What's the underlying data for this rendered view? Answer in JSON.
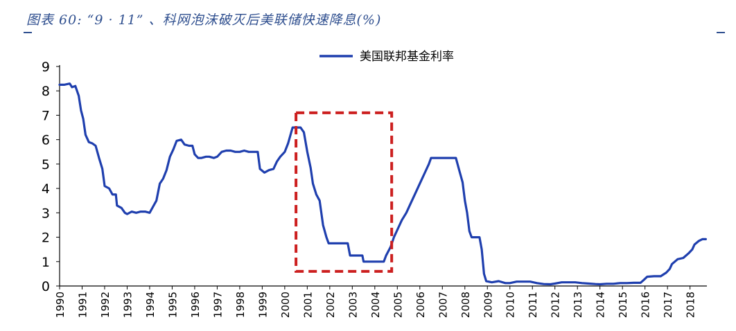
{
  "figure": {
    "title": "图表 60: “9 · 11” 、科网泡沫破灭后美联储快速降息(%)"
  },
  "chart_data": {
    "type": "line",
    "title": "",
    "xlabel": "",
    "ylabel": "",
    "ylim": [
      0,
      9
    ],
    "yticks": [
      "0",
      "1",
      "2",
      "3",
      "4",
      "5",
      "6",
      "7",
      "8",
      "9"
    ],
    "xticks": [
      "1990",
      "1991",
      "1992",
      "1993",
      "1994",
      "1995",
      "1996",
      "1997",
      "1998",
      "1999",
      "2000",
      "2001",
      "2002",
      "2003",
      "2004",
      "2005",
      "2006",
      "2007",
      "2008",
      "2009",
      "2010",
      "2011",
      "2012",
      "2013",
      "2014",
      "2015",
      "2016",
      "2017",
      "2018"
    ],
    "xlim": [
      1990.0,
      2018.75
    ],
    "grid": false,
    "legend_position": "top-center",
    "highlight_box": {
      "x_from": 2000.5,
      "x_to": 2004.75,
      "y_from": 0.6,
      "y_to": 7.1,
      "color": "#cc1f1f"
    },
    "series": [
      {
        "name": "美国联邦基金利率",
        "color": "#1f3fae",
        "points": [
          [
            1990.0,
            8.25
          ],
          [
            1990.2,
            8.25
          ],
          [
            1990.45,
            8.3
          ],
          [
            1990.55,
            8.15
          ],
          [
            1990.7,
            8.2
          ],
          [
            1990.85,
            7.8
          ],
          [
            1990.95,
            7.2
          ],
          [
            1991.05,
            6.85
          ],
          [
            1991.15,
            6.2
          ],
          [
            1991.3,
            5.9
          ],
          [
            1991.45,
            5.85
          ],
          [
            1991.6,
            5.75
          ],
          [
            1991.75,
            5.25
          ],
          [
            1991.9,
            4.8
          ],
          [
            1992.0,
            4.1
          ],
          [
            1992.2,
            4.0
          ],
          [
            1992.35,
            3.75
          ],
          [
            1992.5,
            3.75
          ],
          [
            1992.55,
            3.3
          ],
          [
            1992.75,
            3.2
          ],
          [
            1992.9,
            3.0
          ],
          [
            1993.0,
            2.95
          ],
          [
            1993.2,
            3.05
          ],
          [
            1993.4,
            3.0
          ],
          [
            1993.6,
            3.05
          ],
          [
            1993.8,
            3.05
          ],
          [
            1994.0,
            3.0
          ],
          [
            1994.15,
            3.25
          ],
          [
            1994.3,
            3.5
          ],
          [
            1994.45,
            4.2
          ],
          [
            1994.6,
            4.4
          ],
          [
            1994.75,
            4.75
          ],
          [
            1994.9,
            5.3
          ],
          [
            1995.05,
            5.6
          ],
          [
            1995.2,
            5.95
          ],
          [
            1995.4,
            6.0
          ],
          [
            1995.55,
            5.8
          ],
          [
            1995.75,
            5.75
          ],
          [
            1995.9,
            5.75
          ],
          [
            1996.0,
            5.4
          ],
          [
            1996.15,
            5.25
          ],
          [
            1996.3,
            5.25
          ],
          [
            1996.5,
            5.3
          ],
          [
            1996.65,
            5.3
          ],
          [
            1996.85,
            5.25
          ],
          [
            1997.0,
            5.3
          ],
          [
            1997.2,
            5.5
          ],
          [
            1997.4,
            5.55
          ],
          [
            1997.6,
            5.55
          ],
          [
            1997.8,
            5.5
          ],
          [
            1998.0,
            5.5
          ],
          [
            1998.2,
            5.55
          ],
          [
            1998.4,
            5.5
          ],
          [
            1998.6,
            5.5
          ],
          [
            1998.8,
            5.5
          ],
          [
            1998.9,
            4.8
          ],
          [
            1999.1,
            4.65
          ],
          [
            1999.3,
            4.75
          ],
          [
            1999.5,
            4.8
          ],
          [
            1999.65,
            5.1
          ],
          [
            1999.8,
            5.3
          ],
          [
            2000.0,
            5.5
          ],
          [
            2000.15,
            5.85
          ],
          [
            2000.35,
            6.5
          ],
          [
            2000.5,
            6.5
          ],
          [
            2000.7,
            6.5
          ],
          [
            2000.85,
            6.3
          ],
          [
            2001.0,
            5.5
          ],
          [
            2001.15,
            4.85
          ],
          [
            2001.25,
            4.2
          ],
          [
            2001.4,
            3.75
          ],
          [
            2001.55,
            3.5
          ],
          [
            2001.7,
            2.5
          ],
          [
            2001.85,
            2.0
          ],
          [
            2001.95,
            1.75
          ],
          [
            2002.2,
            1.75
          ],
          [
            2002.5,
            1.75
          ],
          [
            2002.8,
            1.75
          ],
          [
            2002.9,
            1.25
          ],
          [
            2003.2,
            1.25
          ],
          [
            2003.45,
            1.25
          ],
          [
            2003.5,
            1.0
          ],
          [
            2003.8,
            1.0
          ],
          [
            2004.0,
            1.0
          ],
          [
            2004.4,
            1.0
          ],
          [
            2004.5,
            1.25
          ],
          [
            2004.7,
            1.6
          ],
          [
            2004.85,
            2.0
          ],
          [
            2005.0,
            2.3
          ],
          [
            2005.2,
            2.7
          ],
          [
            2005.4,
            3.0
          ],
          [
            2005.6,
            3.4
          ],
          [
            2005.8,
            3.8
          ],
          [
            2006.0,
            4.2
          ],
          [
            2006.2,
            4.6
          ],
          [
            2006.4,
            5.0
          ],
          [
            2006.5,
            5.25
          ],
          [
            2006.8,
            5.25
          ],
          [
            2007.1,
            5.25
          ],
          [
            2007.4,
            5.25
          ],
          [
            2007.6,
            5.25
          ],
          [
            2007.75,
            4.75
          ],
          [
            2007.9,
            4.25
          ],
          [
            2008.0,
            3.5
          ],
          [
            2008.1,
            3.0
          ],
          [
            2008.2,
            2.25
          ],
          [
            2008.3,
            2.0
          ],
          [
            2008.5,
            2.0
          ],
          [
            2008.65,
            2.0
          ],
          [
            2008.75,
            1.5
          ],
          [
            2008.85,
            0.5
          ],
          [
            2008.95,
            0.2
          ],
          [
            2009.2,
            0.15
          ],
          [
            2009.5,
            0.2
          ],
          [
            2009.8,
            0.12
          ],
          [
            2010.0,
            0.12
          ],
          [
            2010.3,
            0.18
          ],
          [
            2010.6,
            0.18
          ],
          [
            2010.9,
            0.18
          ],
          [
            2011.2,
            0.12
          ],
          [
            2011.5,
            0.08
          ],
          [
            2011.8,
            0.07
          ],
          [
            2012.0,
            0.1
          ],
          [
            2012.3,
            0.15
          ],
          [
            2012.6,
            0.15
          ],
          [
            2012.9,
            0.15
          ],
          [
            2013.2,
            0.12
          ],
          [
            2013.5,
            0.1
          ],
          [
            2013.8,
            0.08
          ],
          [
            2014.0,
            0.07
          ],
          [
            2014.3,
            0.09
          ],
          [
            2014.6,
            0.09
          ],
          [
            2014.9,
            0.12
          ],
          [
            2015.2,
            0.12
          ],
          [
            2015.5,
            0.13
          ],
          [
            2015.8,
            0.13
          ],
          [
            2015.95,
            0.25
          ],
          [
            2016.1,
            0.38
          ],
          [
            2016.4,
            0.4
          ],
          [
            2016.7,
            0.4
          ],
          [
            2016.95,
            0.55
          ],
          [
            2017.1,
            0.7
          ],
          [
            2017.2,
            0.9
          ],
          [
            2017.45,
            1.1
          ],
          [
            2017.7,
            1.15
          ],
          [
            2017.95,
            1.35
          ],
          [
            2018.1,
            1.5
          ],
          [
            2018.2,
            1.7
          ],
          [
            2018.4,
            1.85
          ],
          [
            2018.55,
            1.92
          ],
          [
            2018.7,
            1.92
          ]
        ]
      }
    ]
  }
}
